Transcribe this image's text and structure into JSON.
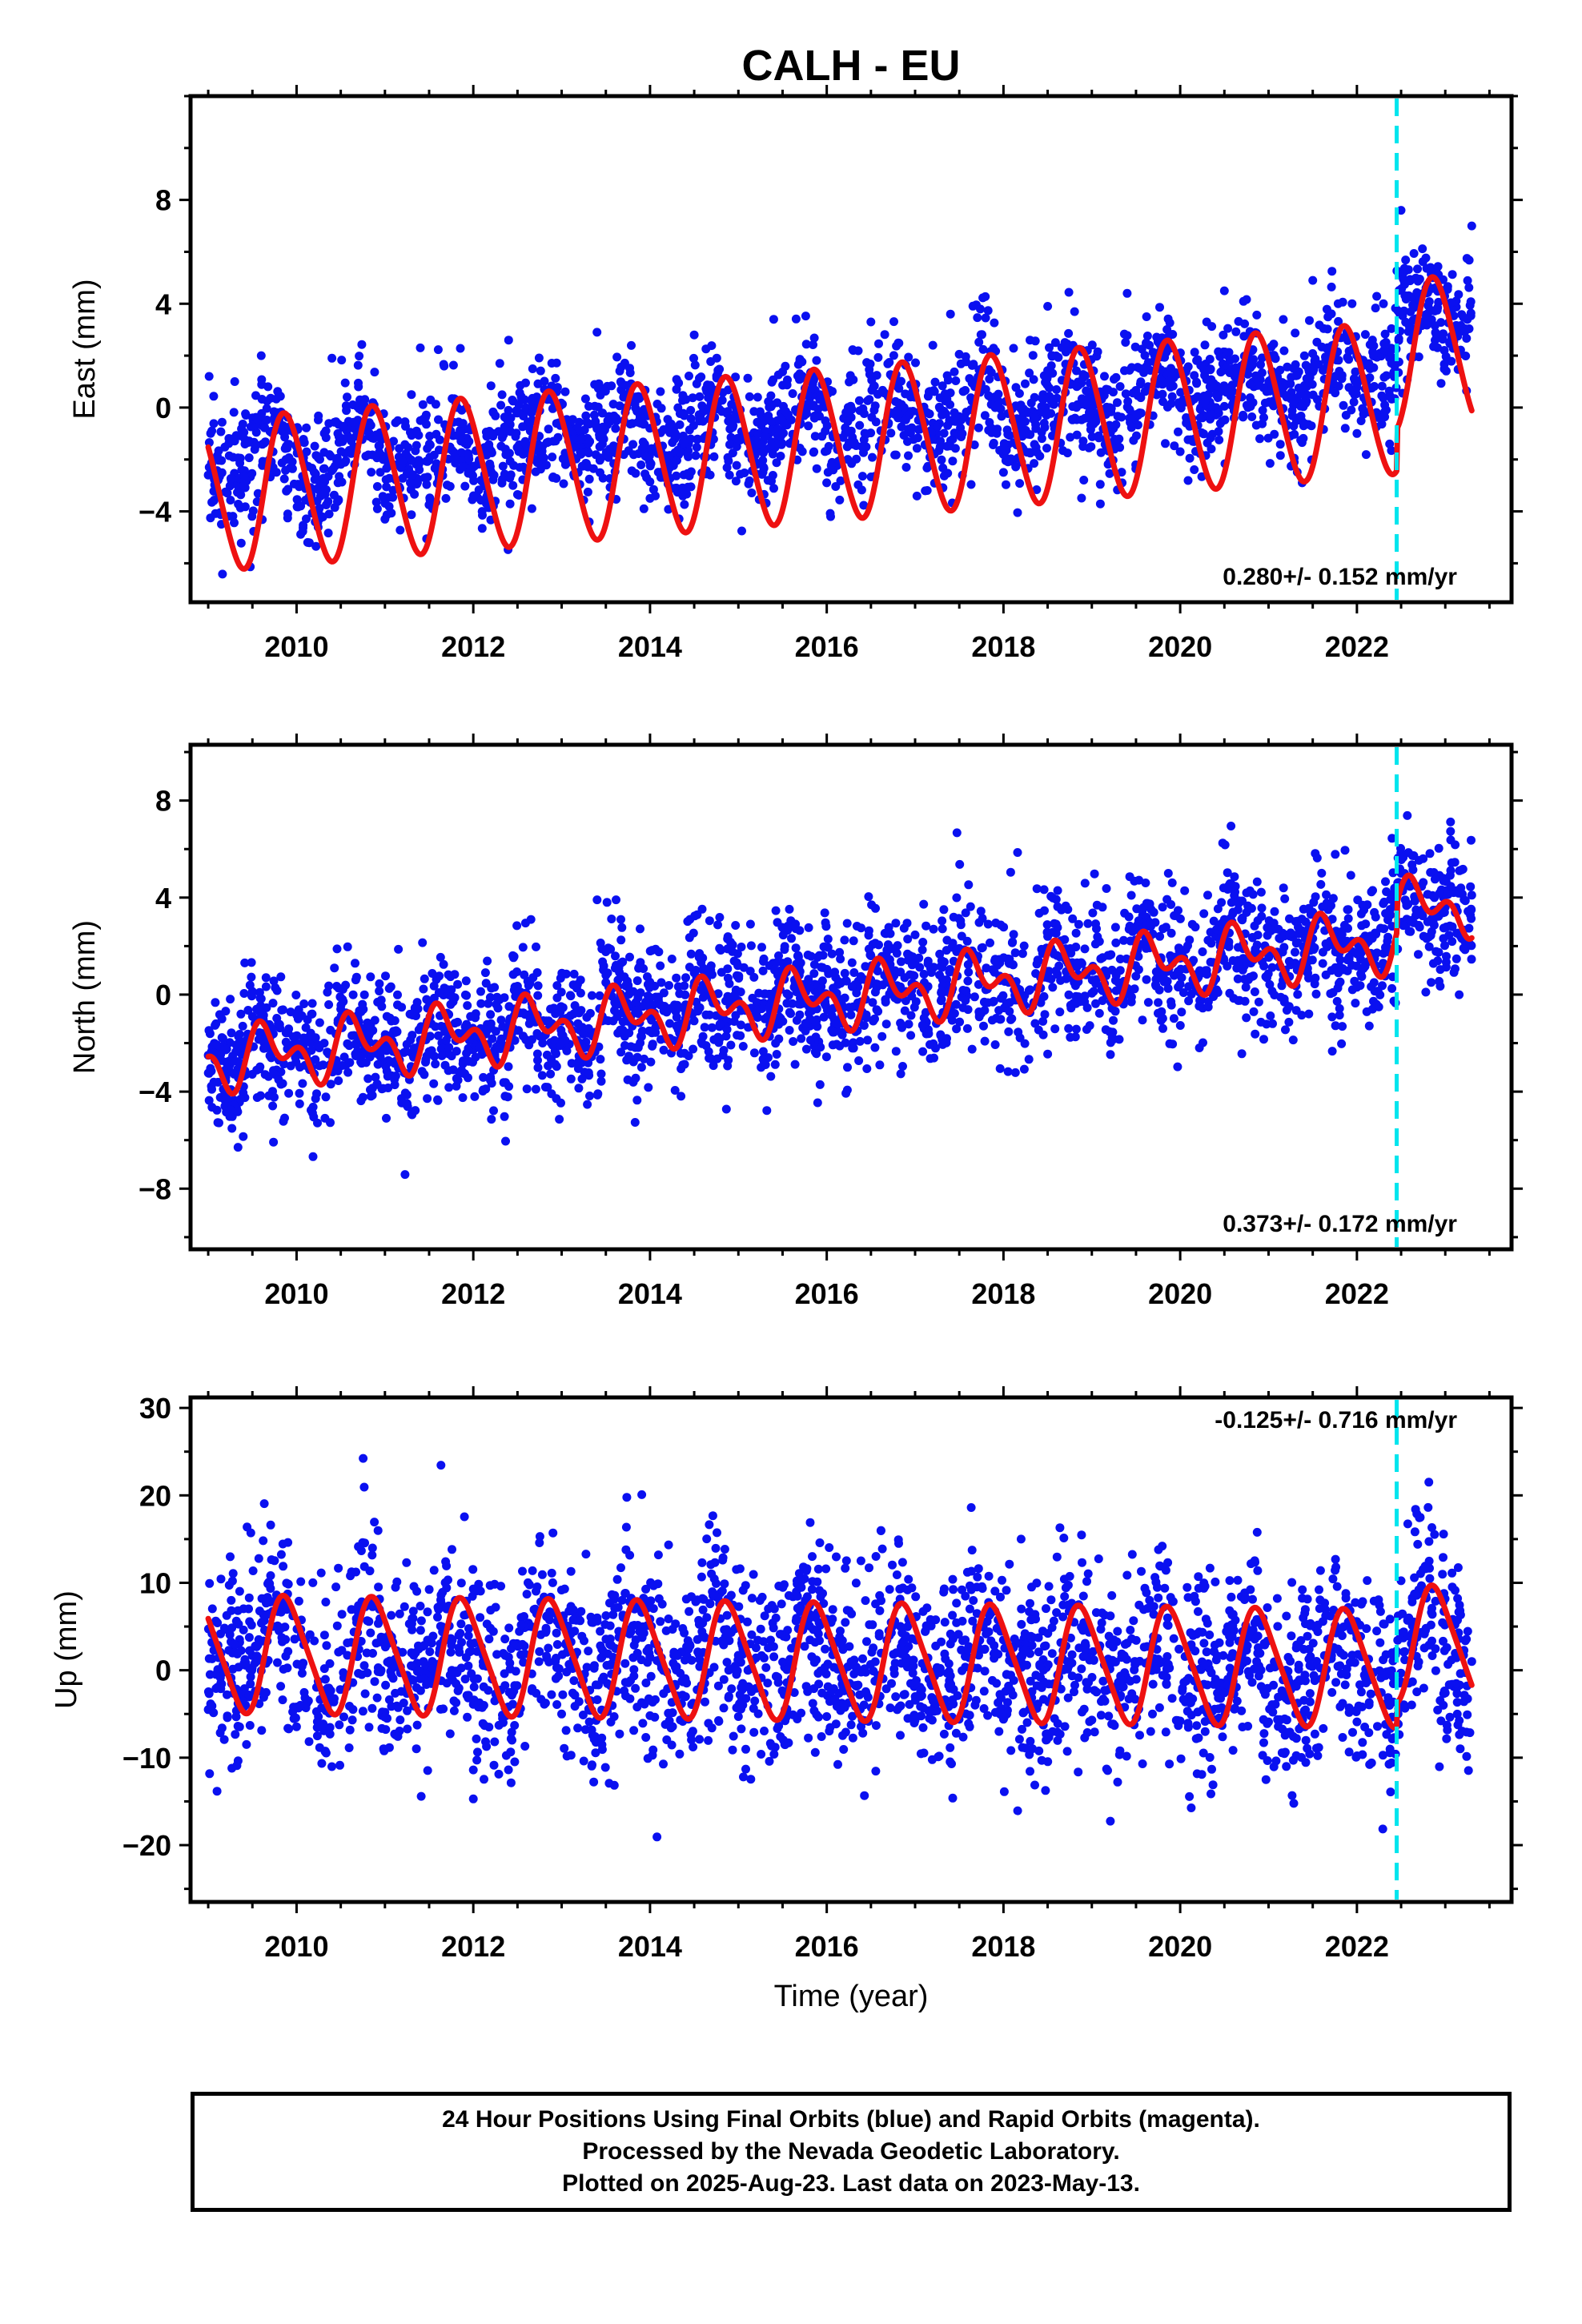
{
  "title": "CALH - EU",
  "colors": {
    "final_orbits": "#0a10f0",
    "fit_curve": "#ee1111",
    "event_line": "#00e5ee"
  },
  "footer": {
    "line1": "24 Hour Positions Using Final Orbits (blue) and Rapid Orbits (magenta).",
    "line2": "Processed by the Nevada Geodetic Laboratory.",
    "line3": "Plotted on 2025-Aug-23. Last data on 2023-May-13."
  },
  "chart_data": [
    {
      "type": "scatter",
      "ylabel": "East (mm)",
      "xlabel": "",
      "xlim": [
        2008.8,
        2023.75
      ],
      "ylim": [
        -7.5,
        12
      ],
      "x_ticks": [
        2010,
        2012,
        2014,
        2016,
        2018,
        2020,
        2022
      ],
      "y_ticks": [
        -4,
        0,
        4,
        8
      ],
      "rate_label": "0.280+/- 0.152 mm/yr",
      "event_line_x": 2022.45,
      "fit_model": {
        "offset": -1.43,
        "trend": 0.28,
        "amplitude": 2.9,
        "phase": 0.63,
        "semiannual_amplitude": 0.25,
        "step_at": 2022.45,
        "step": 1.6
      },
      "scatter_noise_sd": 1.2,
      "series": [
        {
          "role": "observations",
          "points": [
            [
              2009.0,
              -2.6
            ],
            [
              2009.3,
              1.0
            ],
            [
              2009.6,
              2.0
            ],
            [
              2009.9,
              -4.1
            ],
            [
              2010.2,
              -2.5
            ],
            [
              2010.4,
              1.9
            ],
            [
              2010.7,
              0.8
            ],
            [
              2011.0,
              -4.3
            ],
            [
              2011.3,
              0.5
            ],
            [
              2011.4,
              2.3
            ],
            [
              2011.8,
              -2.0
            ],
            [
              2012.1,
              -4.0
            ],
            [
              2012.3,
              1.7
            ],
            [
              2012.4,
              2.6
            ],
            [
              2012.9,
              -2.7
            ],
            [
              2013.1,
              -1.8
            ],
            [
              2013.4,
              2.9
            ],
            [
              2013.7,
              0.4
            ],
            [
              2014.0,
              -3.5
            ],
            [
              2014.3,
              0.7
            ],
            [
              2014.5,
              2.8
            ],
            [
              2014.9,
              -2.6
            ],
            [
              2015.2,
              -1.2
            ],
            [
              2015.4,
              3.4
            ],
            [
              2015.8,
              0.5
            ],
            [
              2016.0,
              -2.9
            ],
            [
              2016.3,
              2.2
            ],
            [
              2016.5,
              3.3
            ],
            [
              2016.9,
              -2.3
            ],
            [
              2017.2,
              -0.6
            ],
            [
              2017.4,
              3.6
            ],
            [
              2017.8,
              0.7
            ],
            [
              2018.0,
              -2.5
            ],
            [
              2018.3,
              2.6
            ],
            [
              2018.5,
              3.9
            ],
            [
              2018.9,
              -1.5
            ],
            [
              2019.2,
              0.0
            ],
            [
              2019.4,
              4.4
            ],
            [
              2019.8,
              0.9
            ],
            [
              2020.0,
              -1.7
            ],
            [
              2020.3,
              3.3
            ],
            [
              2020.5,
              4.5
            ],
            [
              2020.9,
              -1.2
            ],
            [
              2021.2,
              0.9
            ],
            [
              2021.5,
              4.9
            ],
            [
              2021.8,
              1.4
            ],
            [
              2022.0,
              -1.0
            ],
            [
              2022.3,
              4.0
            ],
            [
              2022.5,
              7.6
            ],
            [
              2022.9,
              2.8
            ],
            [
              2023.1,
              2.7
            ],
            [
              2023.3,
              7.0
            ]
          ]
        }
      ]
    },
    {
      "type": "scatter",
      "ylabel": "North (mm)",
      "xlabel": "",
      "xlim": [
        2008.8,
        2023.75
      ],
      "ylim": [
        -10.5,
        10.3
      ],
      "x_ticks": [
        2010,
        2012,
        2014,
        2016,
        2018,
        2020,
        2022
      ],
      "y_ticks": [
        -8,
        -4,
        0,
        4,
        8
      ],
      "rate_label": "0.373+/- 0.172 mm/yr",
      "event_line_x": 2022.45,
      "fit_model": {
        "offset": -0.16,
        "trend": 0.37,
        "amplitude": 0.9,
        "phase": 0.43,
        "semiannual_amplitude": 0.75,
        "step_at": 2022.45,
        "step": 1.2
      },
      "scatter_noise_sd": 1.5,
      "series": [
        {
          "role": "observations",
          "points": [
            [
              2009.0,
              -2.5
            ],
            [
              2009.2,
              -3.4
            ],
            [
              2009.5,
              -0.9
            ],
            [
              2009.8,
              -2.7
            ],
            [
              2010.0,
              -2.4
            ],
            [
              2010.3,
              -2.9
            ],
            [
              2010.5,
              -0.6
            ],
            [
              2010.8,
              -2.2
            ],
            [
              2011.0,
              -1.8
            ],
            [
              2011.3,
              -2.4
            ],
            [
              2011.5,
              -0.3
            ],
            [
              2011.8,
              -1.9
            ],
            [
              2012.0,
              -1.5
            ],
            [
              2012.3,
              -2.0
            ],
            [
              2012.5,
              0.2
            ],
            [
              2012.8,
              -1.7
            ],
            [
              2013.0,
              -1.1
            ],
            [
              2013.3,
              -1.6
            ],
            [
              2013.5,
              0.5
            ],
            [
              2013.8,
              -1.3
            ],
            [
              2014.0,
              -0.8
            ],
            [
              2014.3,
              -1.3
            ],
            [
              2014.5,
              0.9
            ],
            [
              2014.8,
              -0.9
            ],
            [
              2015.0,
              -0.4
            ],
            [
              2015.3,
              -1.0
            ],
            [
              2015.5,
              1.3
            ],
            [
              2015.8,
              -0.5
            ],
            [
              2016.0,
              0.0
            ],
            [
              2016.3,
              -0.5
            ],
            [
              2016.5,
              1.6
            ],
            [
              2016.8,
              -0.2
            ],
            [
              2017.0,
              0.4
            ],
            [
              2017.3,
              -0.2
            ],
            [
              2017.5,
              1.9
            ],
            [
              2017.8,
              0.2
            ],
            [
              2018.0,
              0.7
            ],
            [
              2018.3,
              0.2
            ],
            [
              2018.5,
              2.4
            ],
            [
              2018.8,
              0.5
            ],
            [
              2019.0,
              1.1
            ],
            [
              2019.3,
              0.5
            ],
            [
              2019.5,
              2.7
            ],
            [
              2019.8,
              0.9
            ],
            [
              2020.0,
              1.5
            ],
            [
              2020.3,
              1.0
            ],
            [
              2020.5,
              3.1
            ],
            [
              2020.8,
              1.3
            ],
            [
              2021.0,
              1.8
            ],
            [
              2021.3,
              1.3
            ],
            [
              2021.5,
              3.4
            ],
            [
              2021.8,
              1.7
            ],
            [
              2022.0,
              2.2
            ],
            [
              2022.3,
              1.7
            ],
            [
              2022.5,
              5.0
            ],
            [
              2022.8,
              3.0
            ],
            [
              2023.0,
              3.6
            ],
            [
              2023.3,
              4.1
            ]
          ]
        }
      ]
    },
    {
      "type": "scatter",
      "ylabel": "Up (mm)",
      "xlabel": "Time (year)",
      "xlim": [
        2008.8,
        2023.75
      ],
      "ylim": [
        -26.5,
        31.2
      ],
      "x_ticks": [
        2010,
        2012,
        2014,
        2016,
        2018,
        2020,
        2022
      ],
      "y_ticks": [
        -20,
        -10,
        0,
        10,
        20,
        30
      ],
      "rate_label": "-0.125+/- 0.716 mm/yr",
      "event_line_x": 2022.45,
      "fit_model": {
        "offset": 1.0,
        "trend": -0.125,
        "amplitude": 6.5,
        "phase": 0.64,
        "semiannual_amplitude": 1.0,
        "step_at": 2022.45,
        "step": 2.8
      },
      "scatter_noise_sd": 5.5,
      "series": [
        {
          "role": "observations",
          "points": [
            [
              2009.0,
              -4.5
            ],
            [
              2009.4,
              4.6
            ],
            [
              2009.7,
              7.8
            ],
            [
              2010.0,
              -4.2
            ],
            [
              2010.3,
              -2.6
            ],
            [
              2010.7,
              7.4
            ],
            [
              2011.0,
              -4.8
            ],
            [
              2011.3,
              2.0
            ],
            [
              2011.6,
              7.2
            ],
            [
              2012.0,
              -3.9
            ],
            [
              2012.4,
              1.5
            ],
            [
              2012.7,
              7.0
            ],
            [
              2013.0,
              -5.0
            ],
            [
              2013.3,
              2.2
            ],
            [
              2013.6,
              7.1
            ],
            [
              2014.0,
              -5.2
            ],
            [
              2014.3,
              0.4
            ],
            [
              2014.6,
              6.9
            ],
            [
              2015.0,
              -5.3
            ],
            [
              2015.4,
              2.7
            ],
            [
              2015.7,
              6.7
            ],
            [
              2016.0,
              -5.3
            ],
            [
              2016.3,
              1.0
            ],
            [
              2016.6,
              6.8
            ],
            [
              2017.0,
              -5.5
            ],
            [
              2017.4,
              3.0
            ],
            [
              2017.7,
              6.5
            ],
            [
              2018.0,
              -5.6
            ],
            [
              2018.3,
              1.9
            ],
            [
              2018.6,
              6.6
            ],
            [
              2019.0,
              -5.7
            ],
            [
              2019.4,
              3.1
            ],
            [
              2019.7,
              6.4
            ],
            [
              2020.0,
              -5.8
            ],
            [
              2020.3,
              2.1
            ],
            [
              2020.6,
              6.4
            ],
            [
              2021.0,
              -5.9
            ],
            [
              2021.4,
              2.4
            ],
            [
              2021.7,
              6.2
            ],
            [
              2022.0,
              -5.9
            ],
            [
              2022.4,
              2.0
            ],
            [
              2022.7,
              9.2
            ],
            [
              2023.0,
              -2.6
            ],
            [
              2023.3,
              1.0
            ]
          ]
        }
      ]
    }
  ]
}
